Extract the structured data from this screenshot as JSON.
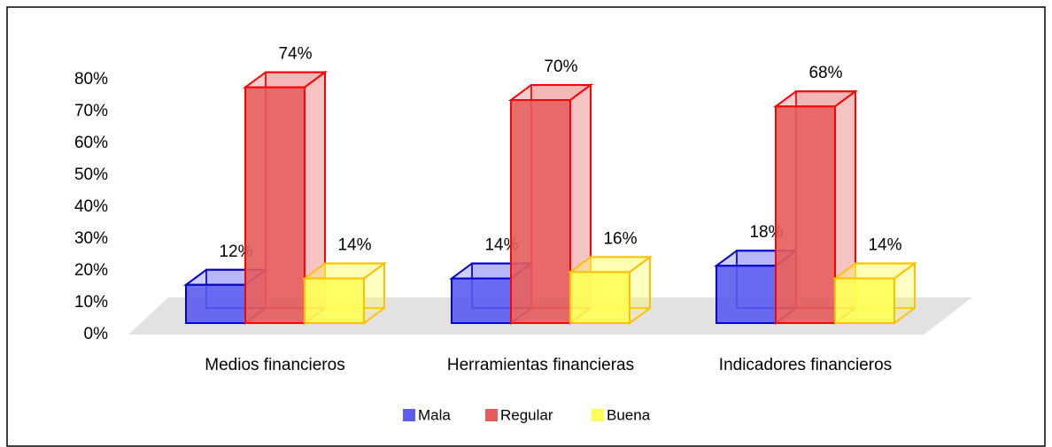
{
  "chart_data": {
    "type": "bar3d",
    "categories": [
      "Medios financieros",
      "Herramientas financieras",
      "Indicadores financieros"
    ],
    "series": [
      {
        "name": "Mala",
        "color": "#5c5cf0",
        "stroke": "#0000cc",
        "values": [
          12,
          14,
          18
        ],
        "value_labels": [
          "12%",
          "14%",
          "18%"
        ]
      },
      {
        "name": "Regular",
        "color": "#e45c5c",
        "stroke": "#ff0000",
        "values": [
          74,
          70,
          68
        ],
        "value_labels": [
          "74%",
          "70%",
          "68%"
        ]
      },
      {
        "name": "Buena",
        "color": "#ffff55",
        "stroke": "#ffc000",
        "values": [
          14,
          16,
          14
        ],
        "value_labels": [
          "14%",
          "16%",
          "14%"
        ]
      }
    ],
    "ylim": [
      0,
      80
    ],
    "yticks": [
      {
        "value": 0,
        "label": "0%"
      },
      {
        "value": 10,
        "label": "10%"
      },
      {
        "value": 20,
        "label": "20%"
      },
      {
        "value": 30,
        "label": "30%"
      },
      {
        "value": 40,
        "label": "40%"
      },
      {
        "value": 50,
        "label": "50%"
      },
      {
        "value": 60,
        "label": "60%"
      },
      {
        "value": 70,
        "label": "70%"
      },
      {
        "value": 80,
        "label": "80%"
      }
    ],
    "legend": "bottom"
  }
}
